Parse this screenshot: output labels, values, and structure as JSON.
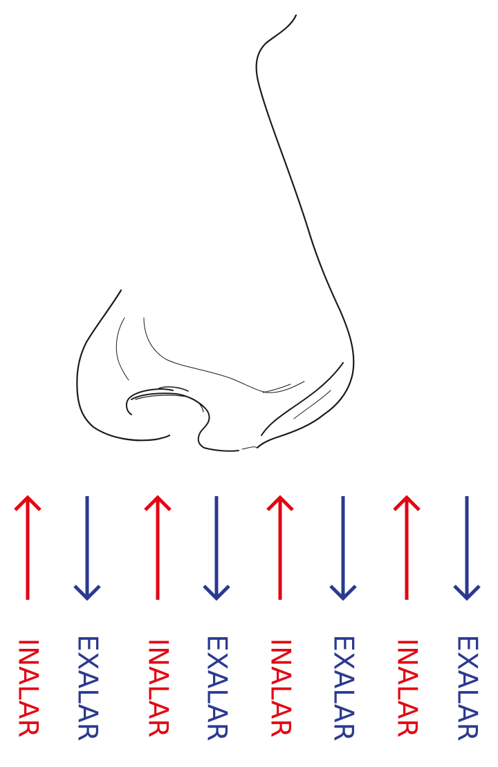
{
  "colors": {
    "inhale": "#e30613",
    "exhale": "#2b3990",
    "outline": "#1a1a1a"
  },
  "icon": "nose-outline-drawing",
  "breaths": [
    {
      "direction": "up",
      "label": "INALAR",
      "kind": "inhale"
    },
    {
      "direction": "down",
      "label": "EXALAR",
      "kind": "exhale"
    },
    {
      "direction": "up",
      "label": "INALAR",
      "kind": "inhale"
    },
    {
      "direction": "down",
      "label": "EXALAR",
      "kind": "exhale"
    },
    {
      "direction": "up",
      "label": "INALAR",
      "kind": "inhale"
    },
    {
      "direction": "down",
      "label": "EXALAR",
      "kind": "exhale"
    },
    {
      "direction": "up",
      "label": "INALAR",
      "kind": "inhale"
    },
    {
      "direction": "down",
      "label": "EXALAR",
      "kind": "exhale"
    }
  ]
}
